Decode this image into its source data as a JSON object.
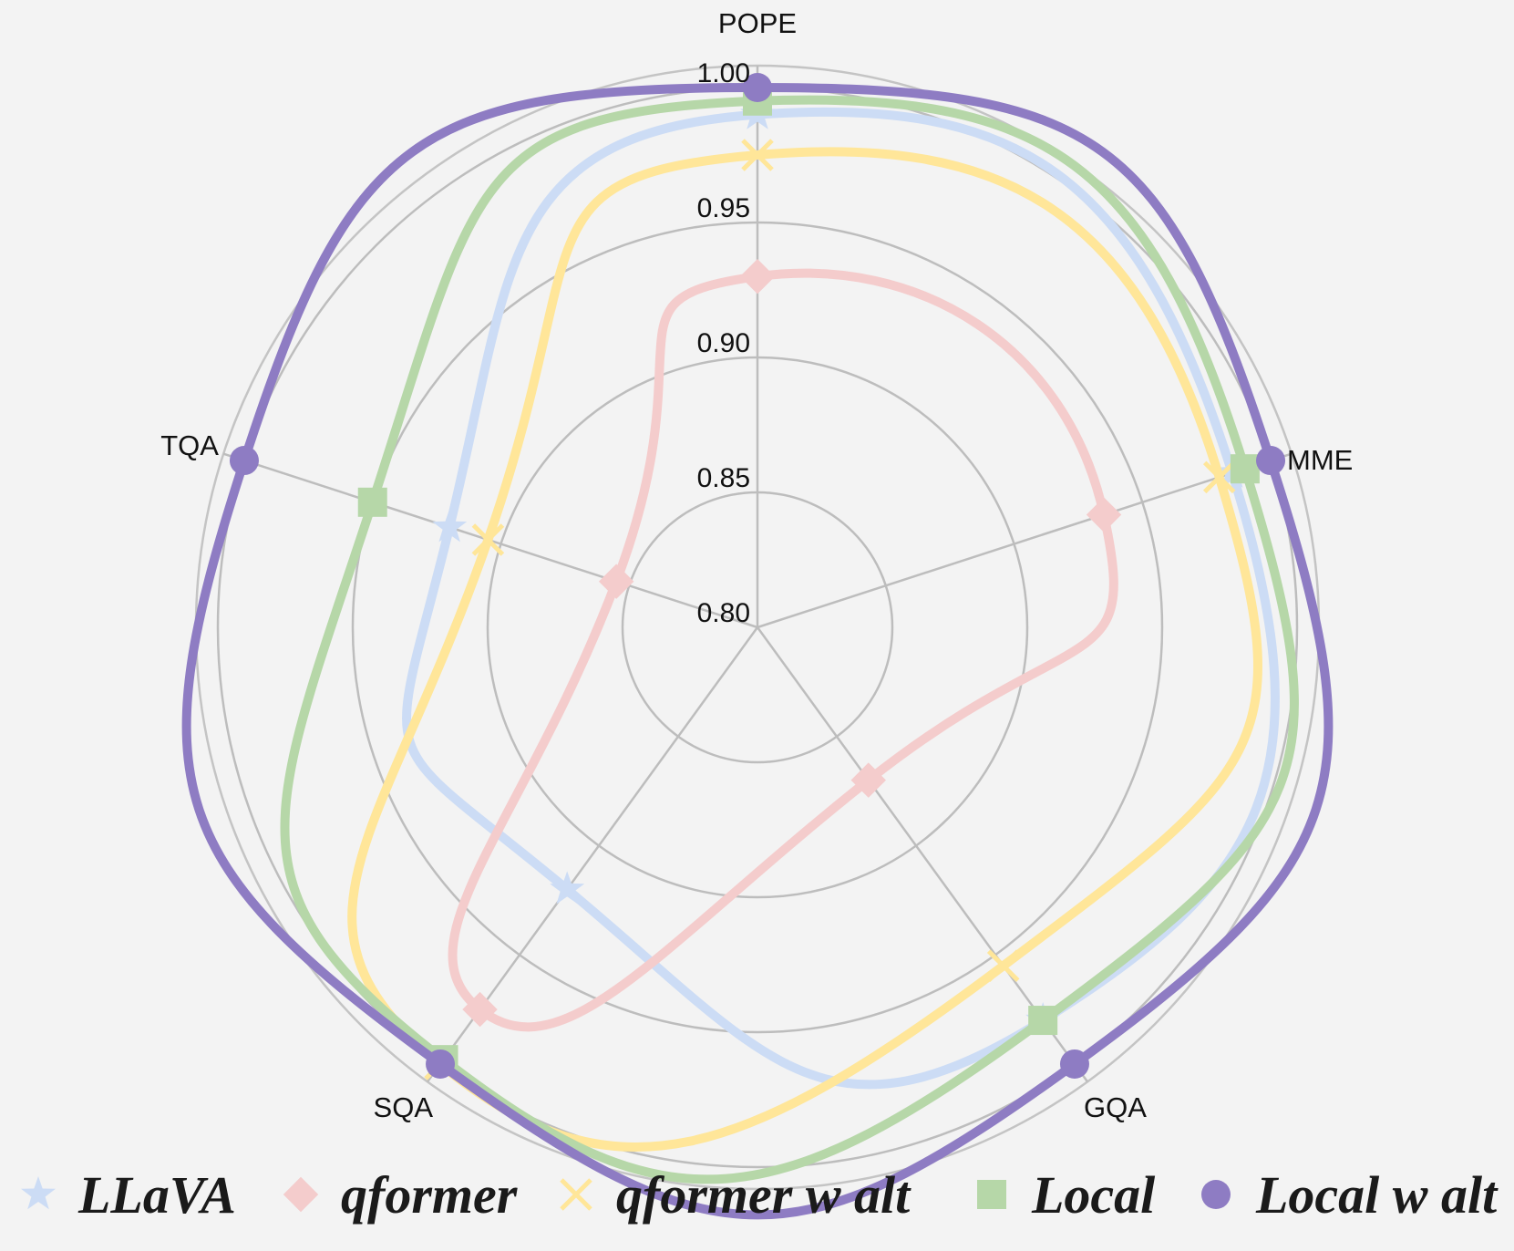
{
  "chart_data": {
    "type": "radar",
    "axes": [
      "POPE",
      "MME",
      "GQA",
      "SQA",
      "TQA"
    ],
    "rlim": [
      0.8,
      1.0
    ],
    "ticks": [
      "0.80",
      "0.85",
      "0.90",
      "0.95",
      "1.00"
    ],
    "grid": true,
    "legend": "bottom",
    "series": [
      {
        "name": "LLaVA",
        "color": "#ccdcf5",
        "marker": "star",
        "values": [
          0.99,
          0.985,
          0.98,
          0.92,
          0.92
        ]
      },
      {
        "name": "qformer",
        "color": "#f4cccc",
        "marker": "diamond",
        "values": [
          0.93,
          0.935,
          0.87,
          0.975,
          0.855
        ]
      },
      {
        "name": "qformer w alt",
        "color": "#ffe699",
        "marker": "x",
        "values": [
          0.975,
          0.98,
          0.955,
          1.0,
          0.905
        ]
      },
      {
        "name": "Local",
        "color": "#b6d7a8",
        "marker": "square",
        "values": [
          0.995,
          0.99,
          0.98,
          0.998,
          0.95
        ]
      },
      {
        "name": "Local w alt",
        "color": "#8e7cc3",
        "marker": "circle",
        "values": [
          1.0,
          1.0,
          1.0,
          1.0,
          1.0
        ]
      }
    ]
  }
}
